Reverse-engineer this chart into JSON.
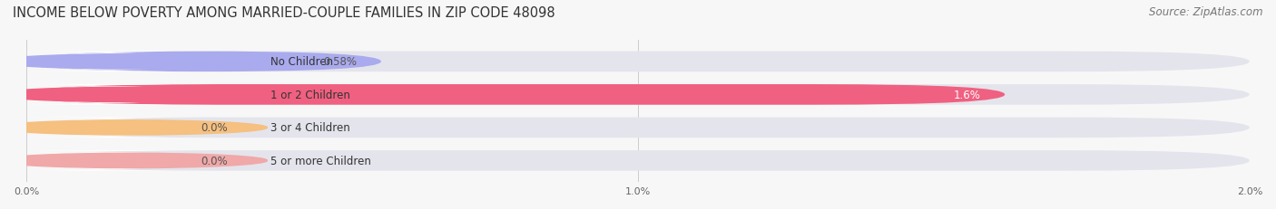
{
  "title": "INCOME BELOW POVERTY AMONG MARRIED-COUPLE FAMILIES IN ZIP CODE 48098",
  "source": "Source: ZipAtlas.com",
  "categories": [
    "No Children",
    "1 or 2 Children",
    "3 or 4 Children",
    "5 or more Children"
  ],
  "values": [
    0.58,
    1.6,
    0.0,
    0.0
  ],
  "bar_colors": [
    "#aaaaee",
    "#f06080",
    "#f5c080",
    "#f0a8a8"
  ],
  "background_color": "#f7f7f7",
  "bar_bg_color": "#e4e4ec",
  "xlim": [
    0,
    2.0
  ],
  "xticks": [
    0.0,
    1.0,
    2.0
  ],
  "xtick_labels": [
    "0.0%",
    "1.0%",
    "2.0%"
  ],
  "title_fontsize": 10.5,
  "source_fontsize": 8.5,
  "label_fontsize": 8.5,
  "value_fontsize": 8.5,
  "bar_height": 0.62,
  "value_labels": [
    "0.58%",
    "1.6%",
    "0.0%",
    "0.0%"
  ],
  "value_text_colors": [
    "#555555",
    "#ffffff",
    "#555555",
    "#555555"
  ]
}
